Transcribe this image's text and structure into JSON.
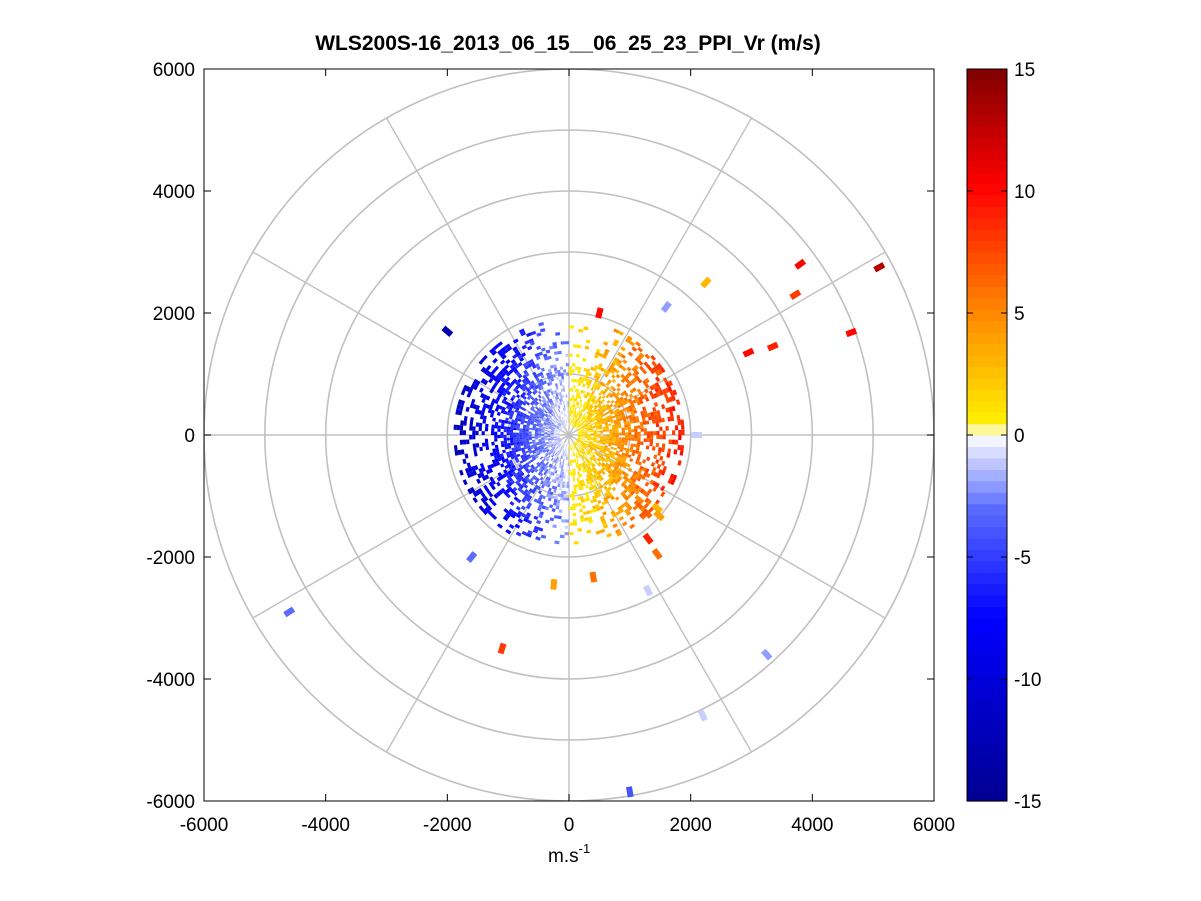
{
  "chart_data": {
    "type": "heatmap",
    "subtype": "polar-ppi",
    "title": "WLS200S-16_2013_06_15__06_25_23_PPI_Vr (m/s)",
    "xlabel_base": "m.s",
    "xlabel_exp": "-1",
    "ylabel": "",
    "xlim": [
      -6000,
      6000
    ],
    "ylim": [
      -6000,
      6000
    ],
    "xticks": [
      -6000,
      -4000,
      -2000,
      0,
      2000,
      4000,
      6000
    ],
    "yticks": [
      -6000,
      -4000,
      -2000,
      0,
      2000,
      4000,
      6000
    ],
    "xtick_labels": [
      "-6000",
      "-4000",
      "-2000",
      "0",
      "2000",
      "4000",
      "6000"
    ],
    "ytick_labels": [
      "6000",
      "4000",
      "2000",
      "0",
      "-2000",
      "-4000",
      "-6000"
    ],
    "grid": "polar",
    "polar_rings_m": [
      1000,
      2000,
      3000,
      4000,
      5000,
      6000
    ],
    "polar_spokes_deg": [
      0,
      30,
      60,
      90,
      120,
      150,
      180,
      210,
      240,
      270,
      300,
      330
    ],
    "grid_color": "#c0c0c0",
    "colorbar": {
      "placement": "right",
      "min": -15,
      "max": 15,
      "ticks": [
        15,
        10,
        5,
        0,
        -5,
        -10,
        -15
      ],
      "tick_labels": [
        "15",
        "10",
        "5",
        "0",
        "-5",
        "-10",
        "-15"
      ],
      "colors": [
        "#00008f",
        "#0000ff",
        "#5a6cff",
        "#ffffff",
        "#ffee00",
        "#ff7f00",
        "#ff0000",
        "#7f0000"
      ]
    },
    "dense_sector": {
      "range_min_m": 150,
      "range_max_m": 1900,
      "pattern": "negative radial velocity west of north-south axis, positive radial velocity east of it, magnitude increasing with range"
    },
    "isolated_gates": [
      {
        "x": 5100,
        "y": 2750,
        "v": 13
      },
      {
        "x": 4640,
        "y": 1680,
        "v": 10
      },
      {
        "x": 3800,
        "y": 2800,
        "v": 10
      },
      {
        "x": 3720,
        "y": 2300,
        "v": 8
      },
      {
        "x": 3350,
        "y": 1450,
        "v": 9
      },
      {
        "x": 2950,
        "y": 1350,
        "v": 10
      },
      {
        "x": 2250,
        "y": 2500,
        "v": 3
      },
      {
        "x": 1600,
        "y": 2100,
        "v": -2
      },
      {
        "x": 500,
        "y": 2000,
        "v": 10
      },
      {
        "x": 2100,
        "y": 0,
        "v": -1
      },
      {
        "x": -2000,
        "y": 1700,
        "v": -13
      },
      {
        "x": -1600,
        "y": -2000,
        "v": -3
      },
      {
        "x": -4600,
        "y": -2900,
        "v": -3
      },
      {
        "x": -1100,
        "y": -3500,
        "v": 8
      },
      {
        "x": -250,
        "y": -2450,
        "v": 4
      },
      {
        "x": 400,
        "y": -2330,
        "v": 6
      },
      {
        "x": 1300,
        "y": -2550,
        "v": -1
      },
      {
        "x": 1450,
        "y": -1950,
        "v": 6
      },
      {
        "x": 1300,
        "y": -1700,
        "v": 9
      },
      {
        "x": 1450,
        "y": -1200,
        "v": 3
      },
      {
        "x": 1480,
        "y": -1320,
        "v": 4
      },
      {
        "x": 3250,
        "y": -3600,
        "v": -2
      },
      {
        "x": 2200,
        "y": -4600,
        "v": -1
      },
      {
        "x": 1000,
        "y": -5850,
        "v": -4
      }
    ]
  }
}
